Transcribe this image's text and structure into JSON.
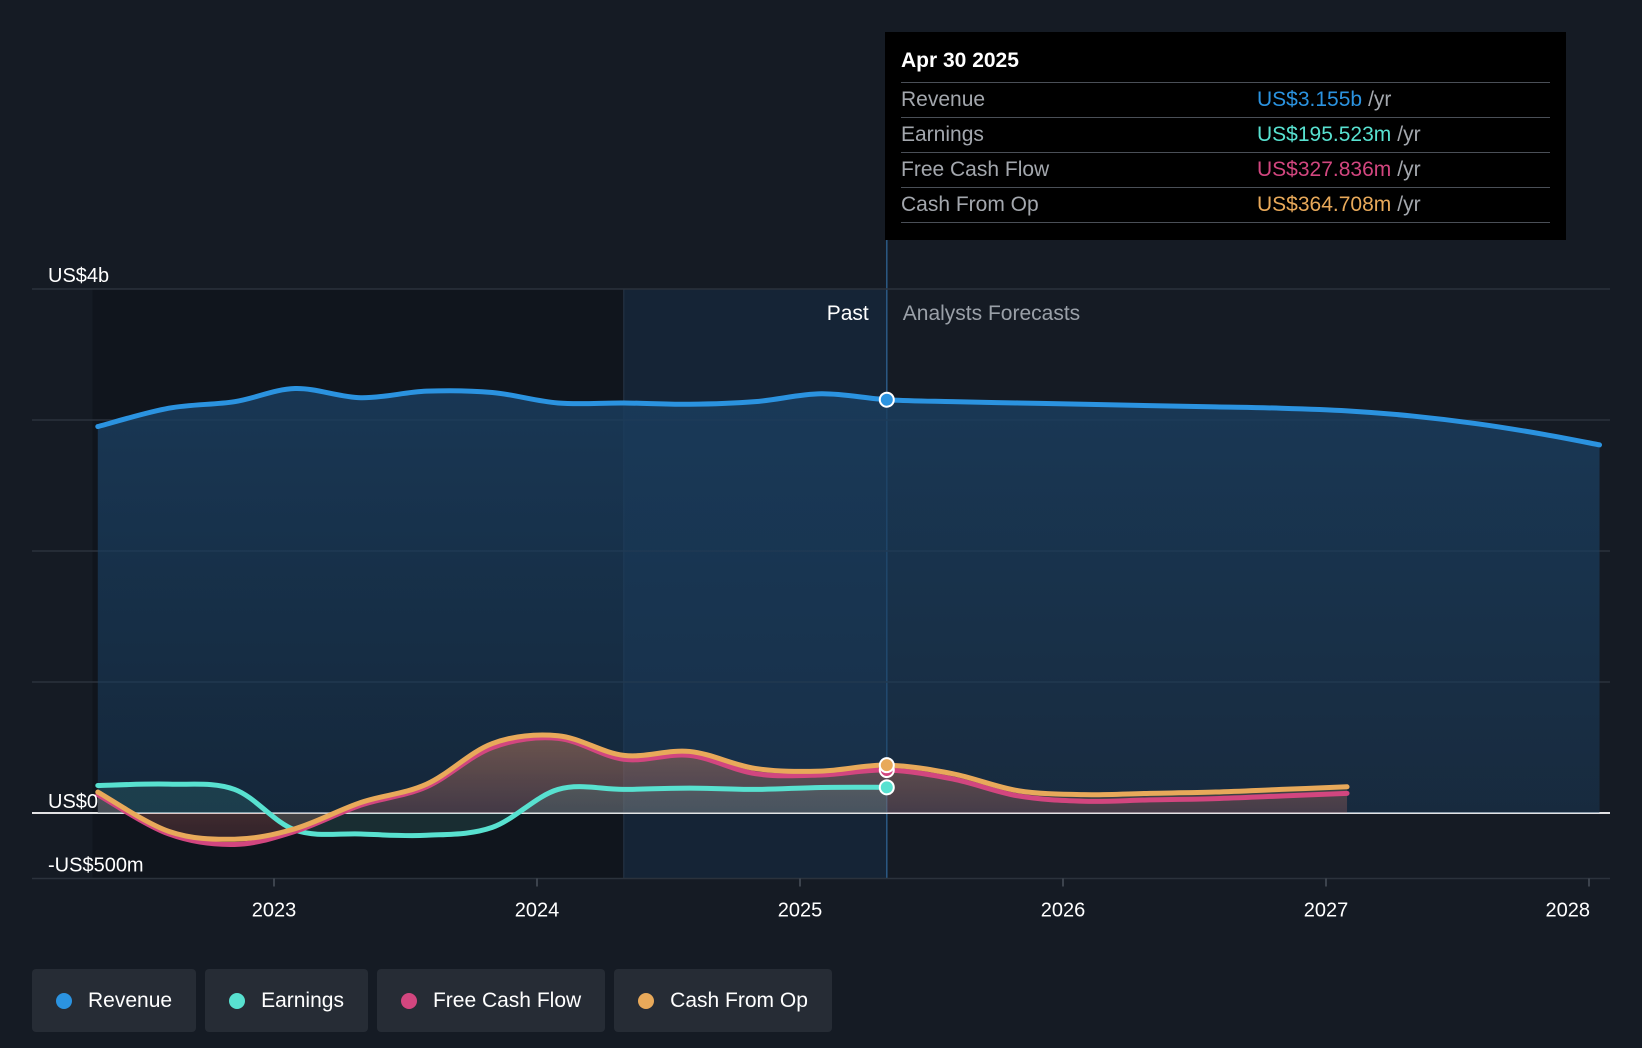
{
  "tooltip": {
    "date": "Apr 30 2025",
    "rows": [
      {
        "label": "Revenue",
        "value": "US$3.155b",
        "unit": "/yr",
        "color": "#2b93e0"
      },
      {
        "label": "Earnings",
        "value": "US$195.523m",
        "unit": "/yr",
        "color": "#58e1d0"
      },
      {
        "label": "Free Cash Flow",
        "value": "US$327.836m",
        "unit": "/yr",
        "color": "#d2467f"
      },
      {
        "label": "Cash From Op",
        "value": "US$364.708m",
        "unit": "/yr",
        "color": "#e8a95a"
      }
    ]
  },
  "legend": [
    {
      "label": "Revenue",
      "color": "#2b93e0"
    },
    {
      "label": "Earnings",
      "color": "#58e1d0"
    },
    {
      "label": "Free Cash Flow",
      "color": "#d2467f"
    },
    {
      "label": "Cash From Op",
      "color": "#e8a95a"
    }
  ],
  "chart_data": {
    "type": "line",
    "y_tick_labels": [
      "US$4b",
      "US$0",
      "-US$500m"
    ],
    "ylim": [
      -500,
      4000
    ],
    "y_unit": "US$m",
    "x_tick_labels": [
      "2023",
      "2024",
      "2025",
      "2026",
      "2027",
      "2028"
    ],
    "xlim": [
      2022.31,
      2028.04
    ],
    "past_label": "Past",
    "forecast_label": "Analysts Forecasts",
    "past_end": 2025.33,
    "shaded_recent_start": 2024.33,
    "grid": true,
    "series": [
      {
        "name": "Revenue",
        "color": "#2b93e0",
        "x": [
          2022.33,
          2022.6,
          2022.85,
          2023.08,
          2023.33,
          2023.58,
          2023.83,
          2024.08,
          2024.33,
          2024.58,
          2024.83,
          2025.08,
          2025.33,
          2025.58,
          2025.83,
          2026.08,
          2026.33,
          2026.58,
          2026.83,
          2027.08,
          2027.33,
          2027.58,
          2027.83,
          2028.04
        ],
        "y": [
          2950,
          3090,
          3140,
          3240,
          3170,
          3220,
          3210,
          3130,
          3130,
          3120,
          3140,
          3200,
          3155,
          3140,
          3130,
          3120,
          3110,
          3100,
          3090,
          3070,
          3030,
          2970,
          2890,
          2810
        ]
      },
      {
        "name": "Earnings",
        "color": "#58e1d0",
        "x": [
          2022.33,
          2022.6,
          2022.85,
          2023.08,
          2023.33,
          2023.58,
          2023.83,
          2024.08,
          2024.33,
          2024.58,
          2024.83,
          2025.08,
          2025.33
        ],
        "y": [
          210,
          220,
          180,
          -130,
          -160,
          -170,
          -110,
          180,
          180,
          190,
          180,
          195,
          196
        ]
      },
      {
        "name": "Free Cash Flow",
        "color": "#d2467f",
        "x": [
          2022.33,
          2022.6,
          2022.85,
          2023.08,
          2023.33,
          2023.58,
          2023.83,
          2024.08,
          2024.33,
          2024.58,
          2024.83,
          2025.08,
          2025.33,
          2025.58,
          2025.83,
          2026.08,
          2026.33,
          2026.58,
          2026.83,
          2027.08
        ],
        "y": [
          140,
          -160,
          -240,
          -140,
          60,
          200,
          500,
          570,
          410,
          440,
          300,
          290,
          328,
          260,
          130,
          90,
          100,
          110,
          130,
          150
        ]
      },
      {
        "name": "Cash From Op",
        "color": "#e8a95a",
        "x": [
          2022.33,
          2022.6,
          2022.85,
          2023.08,
          2023.33,
          2023.58,
          2023.83,
          2024.08,
          2024.33,
          2024.58,
          2024.83,
          2025.08,
          2025.33,
          2025.58,
          2025.83,
          2026.08,
          2026.33,
          2026.58,
          2026.83,
          2027.08
        ],
        "y": [
          160,
          -140,
          -200,
          -120,
          80,
          220,
          530,
          590,
          440,
          470,
          340,
          320,
          365,
          300,
          170,
          140,
          150,
          160,
          180,
          200
        ]
      }
    ]
  }
}
